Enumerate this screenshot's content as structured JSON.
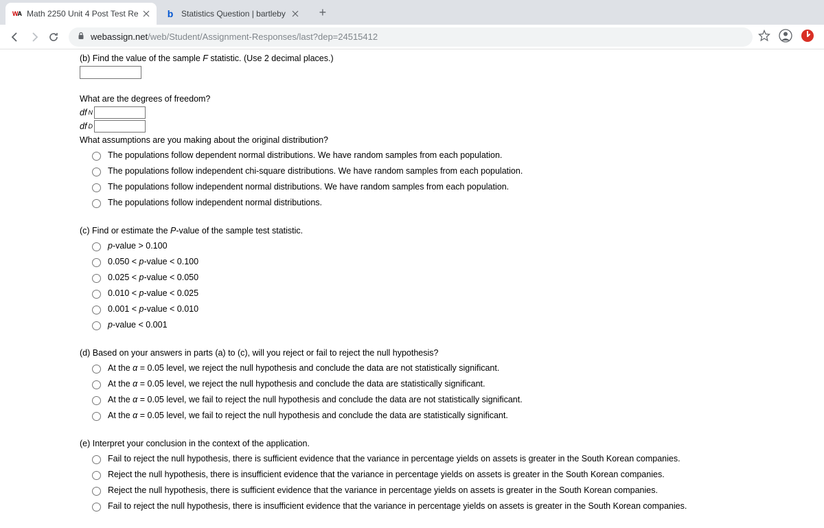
{
  "tabs": [
    {
      "title": "Math 2250 Unit 4 Post Test Re",
      "favicon_type": "wa"
    },
    {
      "title": "Statistics Question | bartleby",
      "favicon_type": "b"
    }
  ],
  "url": {
    "host": "webassign.net",
    "path": "/web/Student/Assignment-Responses/last?dep=24515412"
  },
  "partB": {
    "label": "(b) Find the value of the sample ",
    "stat": "F",
    "label2": " statistic. (Use 2 decimal places.)"
  },
  "degrees": {
    "heading": "What are the degrees of freedom?",
    "dfN_prefix": "df",
    "dfN_sub": "N",
    "dfD_prefix": "df",
    "dfD_sub": "D"
  },
  "assumptions": {
    "heading": "What assumptions are you making about the original distribution?",
    "options": [
      "The populations follow dependent normal distributions. We have random samples from each population.",
      "The populations follow independent chi-square distributions. We have random samples from each population.",
      "The populations follow independent normal distributions. We have random samples from each population.",
      "The populations follow independent normal distributions."
    ]
  },
  "partC": {
    "heading": "(c) Find or estimate the ",
    "pLabel": "P",
    "heading2": "-value of the sample test statistic.",
    "options": [
      {
        "pre": "",
        "p": "p",
        "post": "-value > 0.100"
      },
      {
        "pre": "0.050 < ",
        "p": "p",
        "post": "-value < 0.100"
      },
      {
        "pre": "0.025 < ",
        "p": "p",
        "post": "-value < 0.050"
      },
      {
        "pre": "0.010 < ",
        "p": "p",
        "post": "-value < 0.025"
      },
      {
        "pre": "0.001 < ",
        "p": "p",
        "post": "-value < 0.010"
      },
      {
        "pre": "",
        "p": "p",
        "post": "-value < 0.001"
      }
    ]
  },
  "partD": {
    "heading": "(d) Based on your answers in parts (a) to (c), will you reject or fail to reject the null hypothesis?",
    "options": [
      {
        "pre": "At the ",
        "alpha": "α",
        "post": " = 0.05 level, we reject the null hypothesis and conclude the data are not statistically significant."
      },
      {
        "pre": "At the ",
        "alpha": "α",
        "post": " = 0.05 level, we reject the null hypothesis and conclude the data are statistically significant."
      },
      {
        "pre": "At the ",
        "alpha": "α",
        "post": " = 0.05 level, we fail to reject the null hypothesis and conclude the data are not statistically significant."
      },
      {
        "pre": "At the ",
        "alpha": "α",
        "post": " = 0.05 level, we fail to reject the null hypothesis and conclude the data are statistically significant."
      }
    ]
  },
  "partE": {
    "heading": "(e) Interpret your conclusion in the context of the application.",
    "options": [
      "Fail to reject the null hypothesis, there is sufficient evidence that the variance in percentage yields on assets is greater in the South Korean companies.",
      "Reject the null hypothesis, there is insufficient evidence that the variance in percentage yields on assets is greater in the South Korean companies.",
      "Reject the null hypothesis, there is sufficient evidence that the variance in percentage yields on assets is greater in the South Korean companies.",
      "Fail to reject the null hypothesis, there is insufficient evidence that the variance in percentage yields on assets is greater in the South Korean companies."
    ]
  }
}
